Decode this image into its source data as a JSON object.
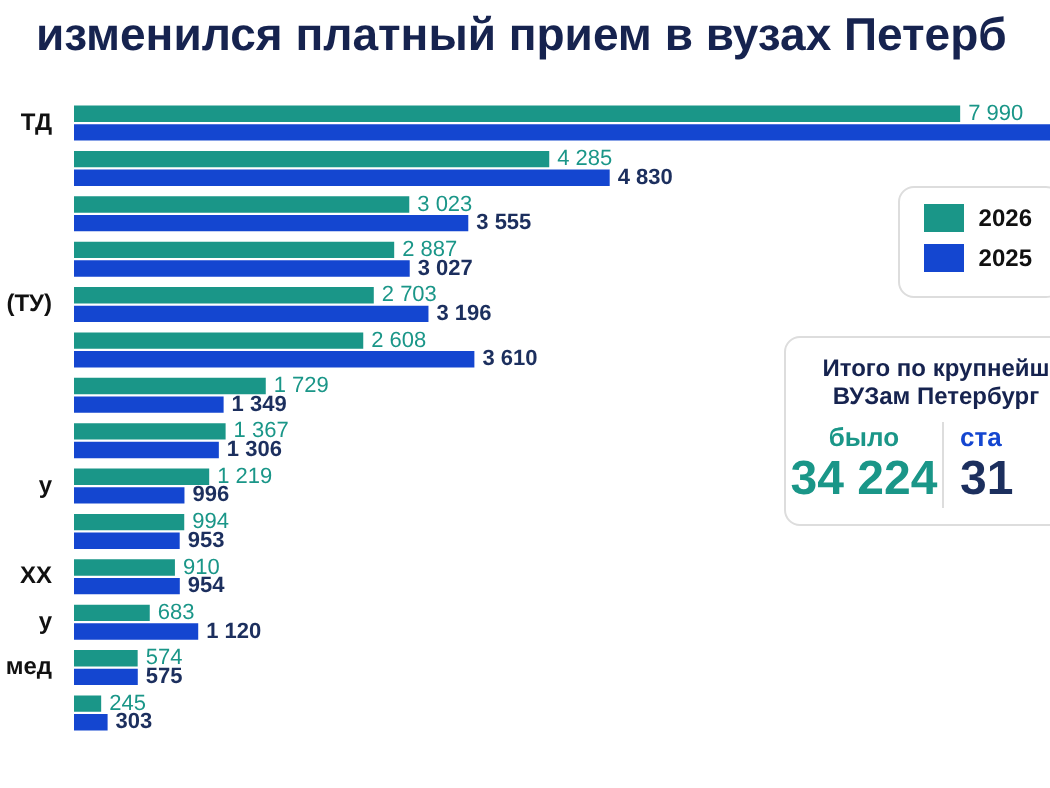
{
  "chart_data": {
    "type": "bar",
    "orientation": "horizontal",
    "title": "изменился платный прием в вузах Петерб",
    "categories": [
      "ТД",
      null,
      null,
      null,
      "(ТУ)",
      null,
      null,
      null,
      "у",
      null,
      "ХХ",
      "у",
      "мед",
      null
    ],
    "series": [
      {
        "name": "2026",
        "color": "#1a9688",
        "values": [
          7990,
          4285,
          3023,
          2887,
          2703,
          2608,
          1729,
          1367,
          1219,
          994,
          910,
          683,
          574,
          245
        ],
        "value_labels": [
          "7 990",
          "4 285",
          "3 023",
          "2 887",
          "2 703",
          "2 608",
          "1 729",
          "1 367",
          "1 219",
          "994",
          "910",
          "683",
          "574",
          "245"
        ]
      },
      {
        "name": "2025",
        "color": "#1446d0",
        "values": [
          8800,
          4830,
          3555,
          3027,
          3196,
          3610,
          1349,
          1306,
          996,
          953,
          954,
          1120,
          575,
          303
        ],
        "value_labels": [
          null,
          "4 830",
          "3 555",
          "3 027",
          "3 196",
          "3 610",
          "1 349",
          "1 306",
          "996",
          "953",
          "954",
          "1 120",
          "575",
          "303"
        ]
      }
    ],
    "legend": "right",
    "annotations": [
      "Итого по крупнейш",
      "ВУЗам Петербург",
      "было",
      "34 224",
      "ста",
      "31"
    ]
  }
}
